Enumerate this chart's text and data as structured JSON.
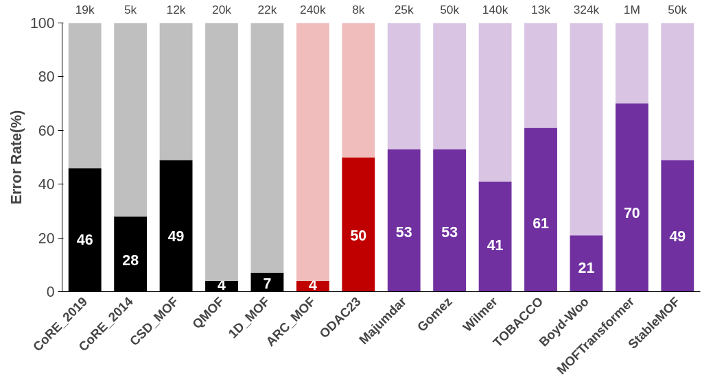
{
  "chart_data": {
    "type": "bar",
    "stacked": true,
    "ylabel": "Error Rate(%)",
    "categories": [
      "CoRE_2019",
      "CoRE_2014",
      "CSD_MOF",
      "QMOF",
      "1D_MOF",
      "ARC_MOF",
      "ODAC23",
      "Majumdar",
      "Gomez",
      "Wilmer",
      "TOBACCO",
      "Boyd-Woo",
      "MOFTransformer",
      "StableMOF"
    ],
    "series": [
      {
        "values": [
          46,
          28,
          49,
          4,
          7,
          4,
          50,
          53,
          53,
          41,
          61,
          21,
          70,
          49
        ],
        "colors": [
          "#000000",
          "#000000",
          "#000000",
          "#000000",
          "#000000",
          "#c00000",
          "#c00000",
          "#7030a0",
          "#7030a0",
          "#7030a0",
          "#7030a0",
          "#7030a0",
          "#7030a0",
          "#7030a0"
        ],
        "value_labels": [
          "46",
          "28",
          "49",
          "4",
          "7",
          "4",
          "50",
          "53",
          "53",
          "41",
          "61",
          "21",
          "70",
          "49"
        ]
      },
      {
        "values": [
          54,
          72,
          51,
          96,
          93,
          96,
          50,
          47,
          47,
          59,
          39,
          79,
          30,
          51
        ],
        "colors": [
          "#bfbfbf",
          "#bfbfbf",
          "#bfbfbf",
          "#bfbfbf",
          "#bfbfbf",
          "#f0bcbc",
          "#f0bcbc",
          "#d9c4e3",
          "#d9c4e3",
          "#d9c4e3",
          "#d9c4e3",
          "#d9c4e3",
          "#d9c4e3",
          "#d9c4e3"
        ]
      }
    ],
    "annotations": [
      {
        "text": "19k",
        "x": "CoRE_2019",
        "y": 100
      },
      {
        "text": "5k",
        "x": "CoRE_2014",
        "y": 100
      },
      {
        "text": "12k",
        "x": "CSD_MOF",
        "y": 100
      },
      {
        "text": "20k",
        "x": "QMOF",
        "y": 100
      },
      {
        "text": "22k",
        "x": "1D_MOF",
        "y": 100
      },
      {
        "text": "240k",
        "x": "ARC_MOF",
        "y": 100
      },
      {
        "text": "8k",
        "x": "ODAC23",
        "y": 100
      },
      {
        "text": "25k",
        "x": "Majumdar",
        "y": 100
      },
      {
        "text": "50k",
        "x": "Gomez",
        "y": 100
      },
      {
        "text": "140k",
        "x": "Wilmer",
        "y": 100
      },
      {
        "text": "13k",
        "x": "TOBACCO",
        "y": 100
      },
      {
        "text": "324k",
        "x": "Boyd-Woo",
        "y": 100
      },
      {
        "text": "1M",
        "x": "MOFTransformer",
        "y": 100
      },
      {
        "text": "50k",
        "x": "StableMOF",
        "y": 100
      }
    ],
    "ylim": [
      0,
      100
    ],
    "yticks": [
      0,
      20,
      40,
      60,
      80,
      100
    ],
    "grid": false
  }
}
